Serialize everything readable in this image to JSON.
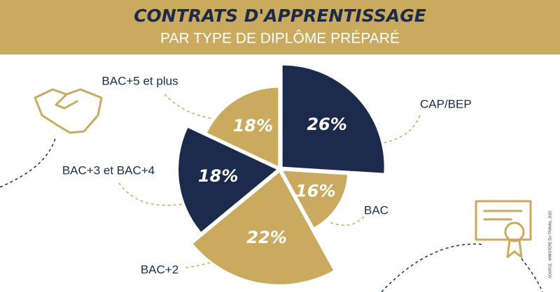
{
  "chart_data": {
    "type": "pie",
    "title": "CONTRATS D'APPRENTISSAGE",
    "subtitle": "PAR TYPE DE DIPLÔME PRÉPARÉ",
    "categories": [
      "CAP/BEP",
      "BAC",
      "BAC+2",
      "BAC+3 et BAC+4",
      "BAC+5 et plus"
    ],
    "values": [
      26,
      16,
      22,
      18,
      18
    ],
    "value_labels": [
      "26%",
      "16%",
      "22%",
      "18%",
      "18%"
    ],
    "colors": [
      "#1c2a4b",
      "#c9aa5e",
      "#c9aa5e",
      "#1c2a4b",
      "#c9aa5e"
    ],
    "source": "SOURCE : MINISTÈRE DU TRAVAIL, 2020"
  }
}
